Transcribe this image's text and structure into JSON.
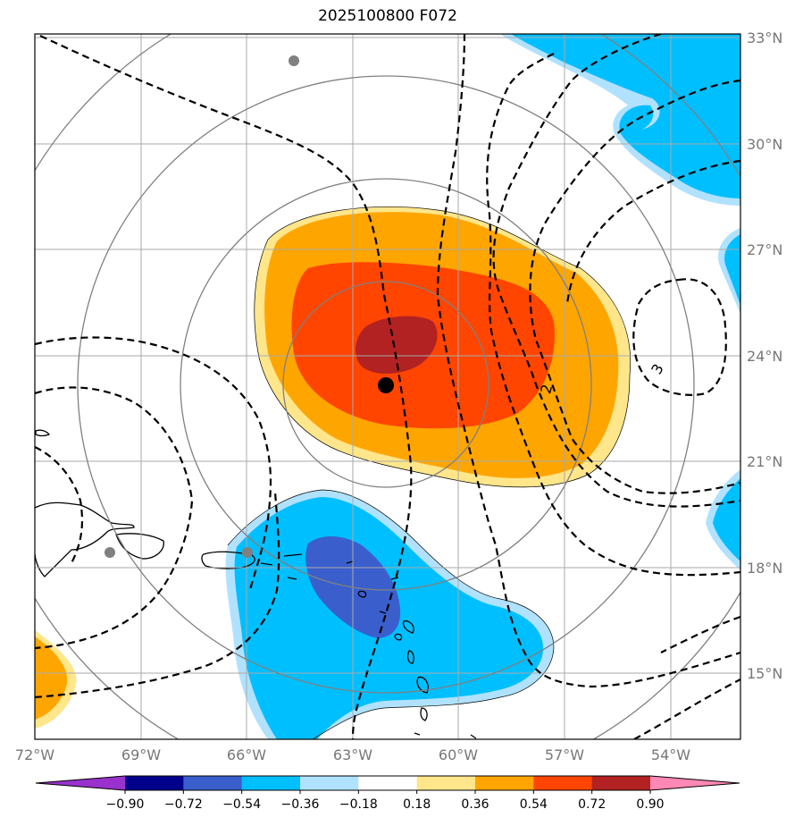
{
  "title": "2025100800 F072",
  "map": {
    "longitudes": [
      "72°W",
      "69°W",
      "66°W",
      "63°W",
      "60°W",
      "57°W",
      "54°W"
    ],
    "latitudes": [
      "33°N",
      "30°N",
      "27°N",
      "24°N",
      "21°N",
      "18°N",
      "15°N"
    ],
    "contour_labels": [
      "2",
      "3"
    ],
    "storm_center": {
      "lon": -62.0,
      "lat": 23.1
    }
  },
  "colorbar": {
    "levels": [
      "−0.90",
      "−0.72",
      "−0.54",
      "−0.36",
      "−0.18",
      "0.18",
      "0.36",
      "0.54",
      "0.72",
      "0.90"
    ],
    "colors": [
      "#9932cc",
      "#00008b",
      "#3a5fcd",
      "#00bfff",
      "#b0e2ff",
      "#ffffff",
      "#ffe68a",
      "#ffa500",
      "#ff4500",
      "#b22222",
      "#ff88b4"
    ]
  },
  "colors": {
    "neg1": "#00bfff",
    "neg2": "#3a5fcd",
    "negLight": "#b0e2ff",
    "pos1": "#ffa500",
    "pos2": "#ff4500",
    "pos3": "#b22222",
    "posLight": "#ffe68a"
  }
}
